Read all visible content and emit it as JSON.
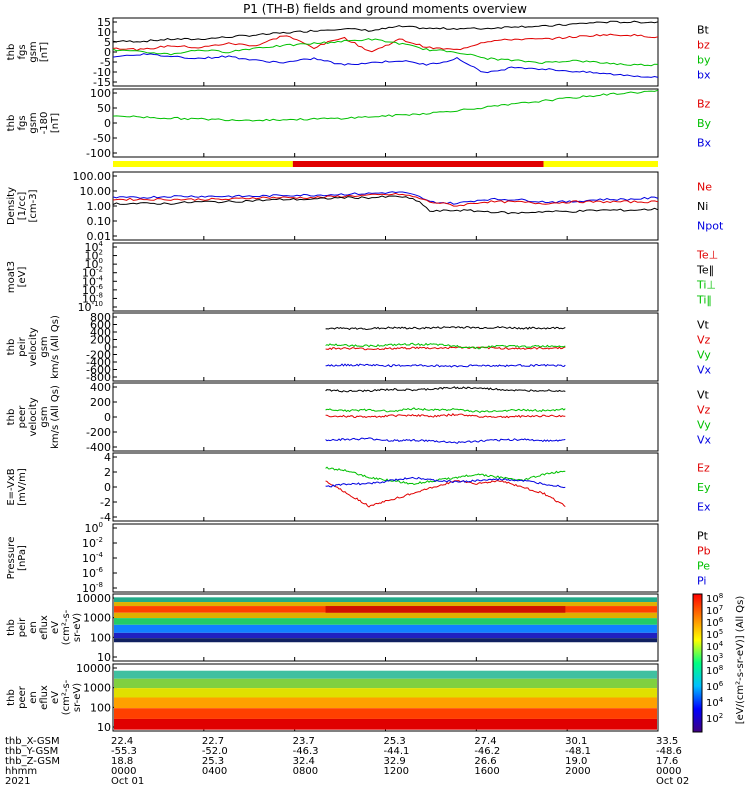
{
  "title": "P1 (TH-B) fields and ground moments overview",
  "chart_data": {
    "type": "line",
    "title": "P1 (TH-B) fields and ground moments overview",
    "x_ticks": [
      "0000",
      "0400",
      "0800",
      "1200",
      "1600",
      "2000",
      "0000"
    ],
    "panels": [
      {
        "ylabel": [
          "thb",
          "fgs",
          "gsm",
          "[nT]"
        ],
        "ticks": [
          "15",
          "10",
          "5",
          "0",
          "-5",
          "-10",
          "-15"
        ],
        "ylim": [
          -15,
          15
        ],
        "legend": [
          {
            "name": "Bt",
            "color": "#000000"
          },
          {
            "name": "bz",
            "color": "#e00000"
          },
          {
            "name": "by",
            "color": "#00c000"
          },
          {
            "name": "bx",
            "color": "#0000e0"
          }
        ],
        "series": [
          {
            "name": "Bt",
            "values": [
              5,
              5,
              6,
              6,
              7,
              8,
              9,
              10,
              11,
              10,
              12,
              11,
              11,
              11,
              12,
              12,
              13,
              14,
              14,
              14
            ]
          },
          {
            "name": "bz",
            "values": [
              2,
              1,
              3,
              2,
              4,
              3,
              8,
              2,
              7,
              0,
              6,
              2,
              1,
              5,
              6,
              6,
              7,
              8,
              8,
              7
            ]
          },
          {
            "name": "by",
            "values": [
              1,
              0,
              -1,
              1,
              0,
              2,
              3,
              4,
              5,
              6,
              4,
              1,
              0,
              -3,
              -4,
              -5,
              -4,
              -5,
              -6,
              -6
            ]
          },
          {
            "name": "bx",
            "values": [
              -2,
              -1,
              -2,
              -3,
              -2,
              -4,
              -5,
              -3,
              -6,
              -5,
              -4,
              -6,
              -3,
              -10,
              -7,
              -8,
              -9,
              -10,
              -11,
              -12
            ]
          }
        ]
      },
      {
        "ylabel": [
          "thb",
          "fgs",
          "gsm",
          "-180",
          "[nT]"
        ],
        "ticks": [
          "100",
          "50",
          "0",
          "-50",
          "-100"
        ],
        "ylim": [
          -120,
          100
        ],
        "legend": [
          {
            "name": "Bz",
            "color": "#e00000"
          },
          {
            "name": "By",
            "color": "#00c000"
          },
          {
            "name": "Bx",
            "color": "#0000e0"
          }
        ],
        "series": [
          {
            "name": "By",
            "values": [
              15,
              8,
              3,
              0,
              2,
              6,
              14,
              24,
              40,
              58,
              75,
              90,
              100
            ]
          }
        ]
      },
      {
        "ylabel": [
          "Density",
          "[1/cc]",
          "[cm-3]"
        ],
        "ticks": [
          "100.00",
          "10.00",
          "1.00",
          "0.10",
          "0.01"
        ],
        "log": true,
        "ylim": [
          0.005,
          200
        ],
        "legend": [
          {
            "name": "Ne",
            "color": "#e00000"
          },
          {
            "name": "Ni",
            "color": "#000000"
          },
          {
            "name": "Npot",
            "color": "#0000e0"
          }
        ],
        "series": [
          {
            "name": "Npot",
            "values": [
              4,
              4,
              5,
              5,
              5,
              5,
              6,
              6,
              7,
              8,
              10,
              2,
              1.5,
              3,
              3,
              2,
              2,
              3,
              3,
              4
            ]
          },
          {
            "name": "Ne",
            "values": [
              3,
              3,
              3,
              3,
              3,
              4,
              4,
              4,
              5,
              6,
              7,
              2,
              1,
              2,
              2,
              1.5,
              2,
              2,
              2,
              2
            ]
          },
          {
            "name": "Ni",
            "values": [
              1.5,
              1.5,
              1.5,
              2,
              2,
              2.5,
              3,
              3,
              4,
              4,
              5,
              0.4,
              0.5,
              0.4,
              0.3,
              0.4,
              0.4,
              0.5,
              0.5,
              0.6
            ]
          }
        ]
      },
      {
        "ylabel": [
          "moat3",
          "[eV]"
        ],
        "ticks": [
          "10",
          "10",
          "10",
          "10",
          "10",
          "10",
          "10",
          "10"
        ],
        "tick_exps": [
          "4",
          "2",
          "0",
          "-2",
          "-4",
          "-6",
          "-8",
          "-10"
        ],
        "legend": [
          {
            "name": "Te⊥",
            "color": "#e00000"
          },
          {
            "name": "Te‖",
            "color": "#000000"
          },
          {
            "name": "Ti⊥",
            "color": "#00c000"
          },
          {
            "name": "Ti‖",
            "color": "#00c000"
          }
        ],
        "series": []
      },
      {
        "ylabel": [
          "thb",
          "peir",
          "velocity",
          "gsm",
          "km/s (All Qs)"
        ],
        "ticks": [
          "800",
          "600",
          "400",
          "200",
          "0",
          "-200",
          "-400",
          "-600",
          "-800"
        ],
        "ylim": [
          -800,
          800
        ],
        "legend": [
          {
            "name": "Vt",
            "color": "#000000"
          },
          {
            "name": "Vz",
            "color": "#e00000"
          },
          {
            "name": "Vy",
            "color": "#00c000"
          },
          {
            "name": "Vx",
            "color": "#0000e0"
          }
        ],
        "series": [
          {
            "name": "Vt",
            "values": [
              470,
              460,
              460,
              480,
              470,
              480,
              500,
              480,
              490,
              470,
              470,
              480
            ]
          },
          {
            "name": "Vz",
            "values": [
              -40,
              -30,
              -50,
              -40,
              -20,
              -30,
              -10,
              -20,
              -30,
              -40,
              -30,
              -20
            ]
          },
          {
            "name": "Vy",
            "values": [
              60,
              40,
              30,
              50,
              70,
              60,
              20,
              -20,
              30,
              10,
              20,
              30
            ]
          },
          {
            "name": "Vx",
            "values": [
              -460,
              -450,
              -450,
              -470,
              -460,
              -470,
              -480,
              -460,
              -470,
              -460,
              -460,
              -470
            ]
          }
        ]
      },
      {
        "ylabel": [
          "thb",
          "peer",
          "velocity",
          "gsm",
          "km/s (All Qs)"
        ],
        "ticks": [
          "400",
          "200",
          "0",
          "-200",
          "-400"
        ],
        "ylim": [
          -500,
          500
        ],
        "legend": [
          {
            "name": "Vt",
            "color": "#000000"
          },
          {
            "name": "Vz",
            "color": "#e00000"
          },
          {
            "name": "Vy",
            "color": "#00c000"
          },
          {
            "name": "Vx",
            "color": "#0000e0"
          }
        ],
        "series": [
          {
            "name": "Vt",
            "values": [
              420,
              400,
              410,
              430,
              420,
              440,
              460,
              450,
              430,
              410,
              420,
              410
            ]
          },
          {
            "name": "Vz",
            "values": [
              20,
              10,
              0,
              20,
              30,
              10,
              40,
              10,
              0,
              10,
              20,
              10
            ]
          },
          {
            "name": "Vy",
            "values": [
              120,
              100,
              110,
              90,
              130,
              110,
              120,
              80,
              100,
              110,
              100,
              120
            ]
          },
          {
            "name": "Vx",
            "values": [
              -360,
              -350,
              -340,
              -370,
              -360,
              -380,
              -400,
              -380,
              -360,
              -350,
              -370,
              -360
            ]
          }
        ]
      },
      {
        "ylabel": [
          "E=-VxB",
          "[mV/m]"
        ],
        "ticks": [
          "4",
          "2",
          "0",
          "-2",
          "-4"
        ],
        "ylim": [
          -5,
          5
        ],
        "legend": [
          {
            "name": "Ez",
            "color": "#e00000"
          },
          {
            "name": "Ey",
            "color": "#00c000"
          },
          {
            "name": "Ex",
            "color": "#0000e0"
          }
        ],
        "series": [
          {
            "name": "Ey",
            "values": [
              3,
              2.5,
              1.5,
              1,
              0.5,
              1,
              1.5,
              2,
              1.5,
              1,
              2,
              2.5
            ]
          },
          {
            "name": "Ez",
            "values": [
              1,
              -1,
              -3,
              -2,
              -1,
              0,
              1,
              0.5,
              1,
              0,
              -1,
              -3
            ]
          },
          {
            "name": "Ex",
            "values": [
              0,
              0.5,
              0.5,
              1,
              1.5,
              1,
              0.8,
              1,
              1.2,
              1,
              0.5,
              0
            ]
          }
        ]
      },
      {
        "ylabel": [
          "Pressure",
          "[nPa]"
        ],
        "ticks": [
          "10",
          "10",
          "10",
          "10",
          "10"
        ],
        "tick_exps": [
          "0",
          "-2",
          "-4",
          "-6",
          "-8"
        ],
        "log": true,
        "legend": [
          {
            "name": "Pt",
            "color": "#000000"
          },
          {
            "name": "Pb",
            "color": "#e00000"
          },
          {
            "name": "Pe",
            "color": "#00c000"
          },
          {
            "name": "Pi",
            "color": "#0000e0"
          }
        ],
        "series": []
      },
      {
        "ylabel": [
          "thb",
          "peir",
          "en",
          "eflux",
          "eV",
          "(cm²-s-",
          "sr-eV)"
        ],
        "ticks": [
          "10000",
          "1000",
          "100",
          "10"
        ],
        "spectrogram": true
      },
      {
        "ylabel": [
          "thb",
          "peer",
          "en",
          "eflux",
          "eV",
          "(cm²-s-",
          "sr-eV)"
        ],
        "ticks": [
          "10000",
          "1000",
          "100",
          "10"
        ],
        "spectrogram": true
      }
    ],
    "colorbar": {
      "label": "[eV/(cm²-s-sr-eV)] (All Qs)",
      "top_ticks_base": "10",
      "top_ticks_exps": [
        "8",
        "7",
        "6",
        "5",
        "4",
        "3"
      ],
      "bottom_ticks_base": "10",
      "bottom_ticks_exps": [
        "8",
        "6",
        "4",
        "2"
      ]
    },
    "footer": {
      "row_labels": [
        "thb_X-GSM",
        "thb_Y-GSM",
        "thb_Z-GSM",
        "hhmm",
        "2021"
      ],
      "columns": [
        [
          "22.4",
          "-55.3",
          "18.8",
          "0000",
          "Oct 01"
        ],
        [
          "22.7",
          "-52.0",
          "25.3",
          "0400",
          ""
        ],
        [
          "23.7",
          "-46.3",
          "32.4",
          "0800",
          ""
        ],
        [
          "25.3",
          "-44.1",
          "32.9",
          "1200",
          ""
        ],
        [
          "27.4",
          "-46.2",
          "26.6",
          "1600",
          ""
        ],
        [
          "30.1",
          "-48.1",
          "19.0",
          "2000",
          ""
        ],
        [
          "33.5",
          "-48.6",
          "17.6",
          "0000",
          "Oct 02"
        ]
      ]
    },
    "mode_bar": [
      {
        "color": "#ffff00",
        "from": 0,
        "to": 0.33
      },
      {
        "color": "#e00000",
        "from": 0.33,
        "to": 0.79
      },
      {
        "color": "#ffff00",
        "from": 0.79,
        "to": 1
      }
    ],
    "colors": {
      "black": "#000000",
      "red": "#e00000",
      "green": "#00c000",
      "blue": "#0000e0",
      "yellow": "#ffff00"
    }
  }
}
